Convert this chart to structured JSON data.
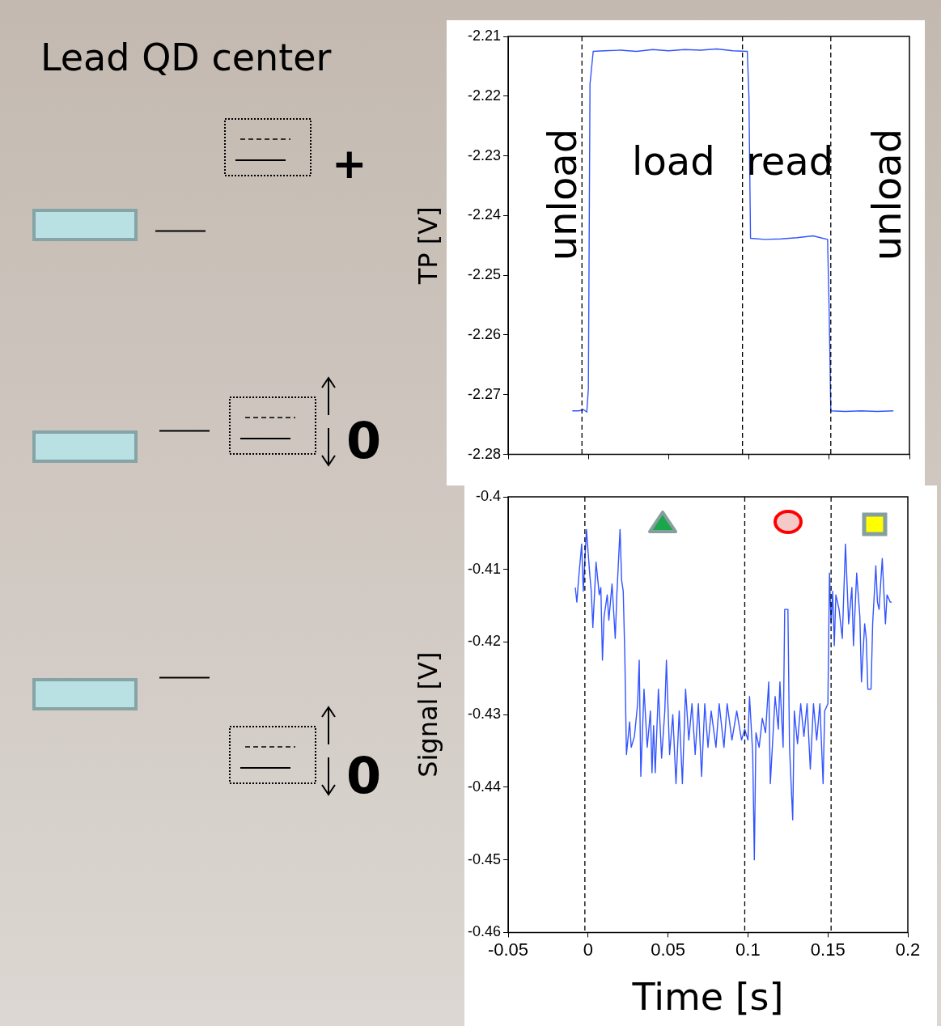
{
  "chart_data": [
    {
      "type": "other",
      "title": "Lead QD center",
      "annotations": [
        "+",
        "0",
        "0"
      ]
    },
    {
      "type": "line",
      "ylabel": "TP [V]",
      "xlim": [
        -0.05,
        0.2
      ],
      "ylim": [
        -2.28,
        -2.21
      ],
      "xticks": [
        {
          "value": -0.05,
          "label": null
        },
        {
          "value": 0,
          "label": null
        },
        {
          "value": 0.05,
          "label": null
        },
        {
          "value": 0.1,
          "label": null
        },
        {
          "value": 0.15,
          "label": null
        },
        {
          "value": 0.2,
          "label": null
        }
      ],
      "yticks": [
        -2.28,
        -2.27,
        -2.26,
        -2.25,
        -2.24,
        -2.23,
        -2.22,
        -2.21
      ],
      "tick_labels": "y",
      "marker": "none",
      "line_style": "solid",
      "series": [
        {
          "color": "#3355ff",
          "x": [
            -0.01,
            -0.006,
            -0.003,
            -0.001,
            0.0,
            0.001,
            0.003,
            0.01,
            0.02,
            0.03,
            0.04,
            0.05,
            0.06,
            0.07,
            0.08,
            0.09,
            0.099,
            0.1,
            0.101,
            0.11,
            0.12,
            0.13,
            0.14,
            0.149,
            0.15,
            0.151,
            0.16,
            0.17,
            0.18,
            0.19
          ],
          "values": [
            -2.2727,
            -2.2727,
            -2.2725,
            -2.2729,
            -2.269,
            -2.218,
            -2.2125,
            -2.2124,
            -2.2123,
            -2.2125,
            -2.2122,
            -2.2124,
            -2.2122,
            -2.2123,
            -2.2121,
            -2.2124,
            -2.2125,
            -2.22,
            -2.2438,
            -2.244,
            -2.2439,
            -2.2437,
            -2.2434,
            -2.244,
            -2.256,
            -2.2727,
            -2.2728,
            -2.2727,
            -2.2728,
            -2.2727
          ]
        }
      ],
      "ref_lines": [
        {
          "axis": "x",
          "value": -0.004,
          "line_style": "dashed",
          "color": "#000000"
        },
        {
          "axis": "x",
          "value": 0.096,
          "line_style": "dashed",
          "color": "#000000"
        },
        {
          "axis": "x",
          "value": 0.151,
          "line_style": "dashed",
          "color": "#000000"
        }
      ],
      "annotations": [
        "unload",
        "load",
        "read",
        "unload"
      ]
    },
    {
      "type": "line",
      "xlabel": "Time [s]",
      "ylabel": "Signal [V]",
      "xlim": [
        -0.05,
        0.2
      ],
      "ylim": [
        -0.46,
        -0.4
      ],
      "xticks": [
        -0.05,
        0,
        0.05,
        0.1,
        0.15,
        0.2
      ],
      "yticks": [
        -0.46,
        -0.45,
        -0.44,
        -0.43,
        -0.42,
        -0.41,
        -0.4
      ],
      "marker": "none",
      "line_style": "solid",
      "series": [
        {
          "color": "#3355ff",
          "x": [
            -0.008,
            -0.007,
            -0.006,
            -0.004,
            -0.003,
            -0.001,
            0.001,
            0.002,
            0.003,
            0.005,
            0.007,
            0.008,
            0.009,
            0.01,
            0.012,
            0.013,
            0.015,
            0.017,
            0.018,
            0.02,
            0.021,
            0.022,
            0.023,
            0.024,
            0.026,
            0.027,
            0.029,
            0.031,
            0.032,
            0.033,
            0.035,
            0.037,
            0.039,
            0.04,
            0.041,
            0.042,
            0.044,
            0.046,
            0.048,
            0.049,
            0.051,
            0.053,
            0.055,
            0.057,
            0.059,
            0.061,
            0.063,
            0.065,
            0.067,
            0.069,
            0.071,
            0.073,
            0.075,
            0.077,
            0.08,
            0.082,
            0.085,
            0.087,
            0.09,
            0.093,
            0.096,
            0.098,
            0.1,
            0.101,
            0.103,
            0.104,
            0.105,
            0.107,
            0.109,
            0.111,
            0.113,
            0.114,
            0.116,
            0.117,
            0.119,
            0.12,
            0.122,
            0.123,
            0.125,
            0.126,
            0.128,
            0.129,
            0.131,
            0.133,
            0.135,
            0.137,
            0.139,
            0.141,
            0.143,
            0.145,
            0.147,
            0.148,
            0.15,
            0.151,
            0.152,
            0.153,
            0.154,
            0.155,
            0.157,
            0.159,
            0.161,
            0.163,
            0.165,
            0.166,
            0.168,
            0.17,
            0.171,
            0.173,
            0.174,
            0.175,
            0.177,
            0.178,
            0.18,
            0.181,
            0.182,
            0.184,
            0.186,
            0.187,
            0.189,
            0.19
          ],
          "values": [
            -0.4125,
            -0.4145,
            -0.4115,
            -0.4065,
            -0.413,
            -0.4045,
            -0.4105,
            -0.413,
            -0.418,
            -0.409,
            -0.4135,
            -0.4125,
            -0.4225,
            -0.4165,
            -0.4135,
            -0.417,
            -0.412,
            -0.4195,
            -0.4135,
            -0.4045,
            -0.4115,
            -0.413,
            -0.422,
            -0.4355,
            -0.431,
            -0.4345,
            -0.433,
            -0.4285,
            -0.4225,
            -0.4385,
            -0.4265,
            -0.4345,
            -0.4295,
            -0.438,
            -0.4315,
            -0.438,
            -0.4265,
            -0.436,
            -0.4295,
            -0.4225,
            -0.4355,
            -0.43,
            -0.4395,
            -0.4295,
            -0.4395,
            -0.4265,
            -0.4335,
            -0.4285,
            -0.4355,
            -0.4285,
            -0.4385,
            -0.4285,
            -0.4345,
            -0.4295,
            -0.4345,
            -0.4285,
            -0.4345,
            -0.4285,
            -0.4335,
            -0.4295,
            -0.4335,
            -0.432,
            -0.4335,
            -0.4275,
            -0.4355,
            -0.45,
            -0.4325,
            -0.4345,
            -0.4305,
            -0.4325,
            -0.4255,
            -0.4395,
            -0.4315,
            -0.4275,
            -0.432,
            -0.4255,
            -0.4345,
            -0.4155,
            -0.4155,
            -0.4345,
            -0.4445,
            -0.4295,
            -0.434,
            -0.4285,
            -0.433,
            -0.4285,
            -0.4375,
            -0.4285,
            -0.4335,
            -0.4285,
            -0.4395,
            -0.4295,
            -0.4285,
            -0.4105,
            -0.4175,
            -0.413,
            -0.4205,
            -0.4135,
            -0.4155,
            -0.4195,
            -0.4065,
            -0.4175,
            -0.4125,
            -0.4205,
            -0.4105,
            -0.4165,
            -0.4255,
            -0.4175,
            -0.4195,
            -0.4265,
            -0.4265,
            -0.4175,
            -0.4095,
            -0.4145,
            -0.4155,
            -0.4085,
            -0.4175,
            -0.4135,
            -0.4145,
            -0.4145
          ]
        }
      ],
      "ref_lines": [
        {
          "axis": "x",
          "value": -0.002,
          "line_style": "dashed",
          "color": "#000000"
        },
        {
          "axis": "x",
          "value": 0.098,
          "line_style": "dashed",
          "color": "#000000"
        },
        {
          "axis": "x",
          "value": 0.152,
          "line_style": "dashed",
          "color": "#000000"
        }
      ]
    }
  ]
}
